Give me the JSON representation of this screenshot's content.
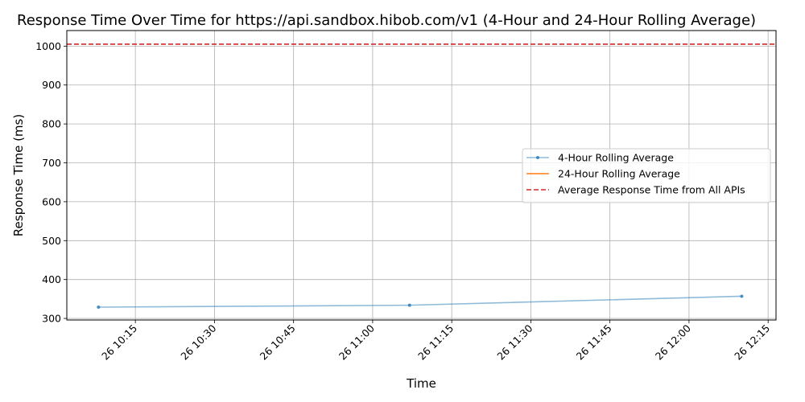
{
  "chart_data": {
    "type": "line",
    "title": "Response Time Over Time for https://api.sandbox.hibob.com/v1 (4-Hour and 24-Hour Rolling Average)",
    "xlabel": "Time",
    "ylabel": "Response Time (ms)",
    "x_tick_labels": [
      "26 10:15",
      "26 10:30",
      "26 10:45",
      "26 11:00",
      "26 11:15",
      "26 11:30",
      "26 11:45",
      "26 12:00",
      "26 12:15"
    ],
    "x_tick_minutes": [
      615,
      630,
      645,
      660,
      675,
      690,
      705,
      720,
      735
    ],
    "xlim_minutes": [
      602.0,
      736.5
    ],
    "y_ticks": [
      300,
      400,
      500,
      600,
      700,
      800,
      900,
      1000
    ],
    "ylim": [
      296,
      1040
    ],
    "grid": true,
    "legend_position": "center-right",
    "series": [
      {
        "name": "4-Hour Rolling Average",
        "color": "#1f77b4",
        "opacity": 0.5,
        "marker": "dot",
        "x_minutes": [
          608,
          667,
          730
        ],
        "values": [
          329,
          334,
          357
        ]
      },
      {
        "name": "24-Hour Rolling Average",
        "color": "#ff7f0e",
        "x_minutes": [],
        "values": []
      }
    ],
    "reference_lines": [
      {
        "name": "Average Response Time from All APIs",
        "value": 1005,
        "color": "#d62728",
        "style": "dashed"
      }
    ]
  }
}
